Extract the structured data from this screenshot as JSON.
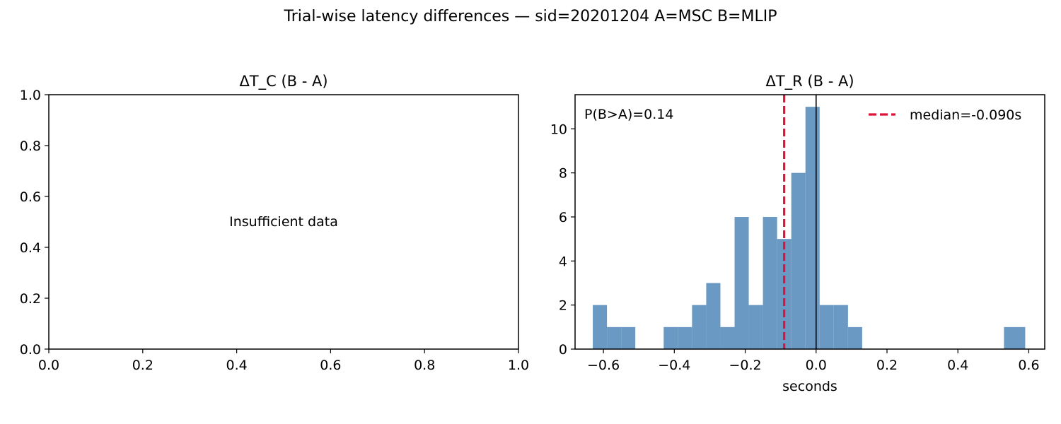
{
  "figure": {
    "suptitle": "Trial-wise latency differences — sid=20201204  A=MSC  B=MLIP"
  },
  "chart_data": [
    {
      "type": "empty",
      "title": "ΔT_C (B - A)",
      "xlabel": "",
      "ylabel": "",
      "message": "Insufficient data",
      "xlim": [
        0,
        1
      ],
      "ylim": [
        0,
        1
      ],
      "xticks": [
        "0.0",
        "0.2",
        "0.4",
        "0.6",
        "0.8",
        "1.0"
      ],
      "yticks": [
        "0.0",
        "0.2",
        "0.4",
        "0.6",
        "0.8",
        "1.0"
      ]
    },
    {
      "type": "bar",
      "title": "ΔT_R (B - A)",
      "xlabel": "seconds",
      "ylabel": "",
      "annotation": "P(B>A)=0.14",
      "xlim": [
        -0.68,
        0.645
      ],
      "ylim": [
        0,
        11.55
      ],
      "bin_width": 0.04,
      "bin_edges": [
        -0.63,
        -0.59,
        -0.55,
        -0.51,
        -0.47,
        -0.43,
        -0.39,
        -0.35,
        -0.31,
        -0.27,
        -0.23,
        -0.19,
        -0.15,
        -0.11,
        -0.07,
        -0.03,
        0.01,
        0.05,
        0.09,
        0.13,
        0.17,
        0.21,
        0.25,
        0.29,
        0.33,
        0.37,
        0.41,
        0.45,
        0.49,
        0.53,
        0.59
      ],
      "counts": [
        2,
        1,
        1,
        0,
        0,
        1,
        1,
        2,
        3,
        1,
        6,
        2,
        6,
        5,
        8,
        11,
        2,
        2,
        1,
        0,
        0,
        0,
        0,
        0,
        0,
        0,
        0,
        0,
        0,
        1
      ],
      "bar_color": "#6a9ac4",
      "median": -0.09,
      "median_label": "median=-0.090s",
      "median_color": "#dc143c",
      "zero_line": 0,
      "legend_position": "top-right",
      "xticks": [
        -0.6,
        -0.4,
        -0.2,
        0.0,
        0.2,
        0.4,
        0.6
      ],
      "xtick_labels": [
        "−0.6",
        "−0.4",
        "−0.2",
        "0.0",
        "0.2",
        "0.4",
        "0.6"
      ],
      "yticks": [
        0,
        2,
        4,
        6,
        8,
        10
      ],
      "ytick_labels": [
        "0",
        "2",
        "4",
        "6",
        "8",
        "10"
      ]
    }
  ]
}
